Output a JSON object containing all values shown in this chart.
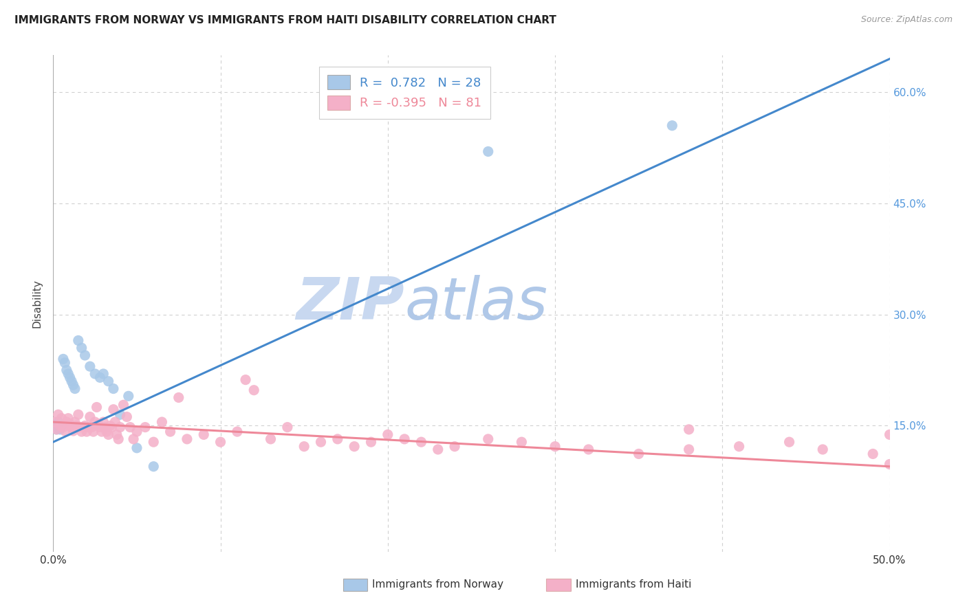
{
  "title": "IMMIGRANTS FROM NORWAY VS IMMIGRANTS FROM HAITI DISABILITY CORRELATION CHART",
  "source": "Source: ZipAtlas.com",
  "ylabel": "Disability",
  "xlim": [
    0.0,
    0.5
  ],
  "ylim": [
    -0.02,
    0.65
  ],
  "norway_color": "#a8c8e8",
  "haiti_color": "#f4b0c8",
  "norway_line_color": "#4488cc",
  "haiti_line_color": "#ee8899",
  "right_tick_color": "#5599dd",
  "R_norway": 0.782,
  "N_norway": 28,
  "R_haiti": -0.395,
  "N_haiti": 81,
  "norway_line_x0": 0.0,
  "norway_line_y0": 0.128,
  "norway_line_x1": 0.5,
  "norway_line_y1": 0.645,
  "haiti_line_x0": 0.0,
  "haiti_line_y0": 0.155,
  "haiti_line_x1": 0.5,
  "haiti_line_y1": 0.095,
  "norway_points_x": [
    0.001,
    0.002,
    0.003,
    0.004,
    0.005,
    0.006,
    0.007,
    0.008,
    0.009,
    0.01,
    0.011,
    0.012,
    0.013,
    0.015,
    0.017,
    0.019,
    0.022,
    0.025,
    0.028,
    0.03,
    0.033,
    0.036,
    0.04,
    0.045,
    0.05,
    0.06,
    0.26,
    0.37
  ],
  "norway_points_y": [
    0.15,
    0.145,
    0.155,
    0.145,
    0.15,
    0.24,
    0.235,
    0.225,
    0.22,
    0.215,
    0.21,
    0.205,
    0.2,
    0.265,
    0.255,
    0.245,
    0.23,
    0.22,
    0.215,
    0.22,
    0.21,
    0.2,
    0.165,
    0.19,
    0.12,
    0.095,
    0.52,
    0.555
  ],
  "haiti_points_x": [
    0.001,
    0.002,
    0.003,
    0.004,
    0.005,
    0.006,
    0.007,
    0.008,
    0.009,
    0.01,
    0.011,
    0.012,
    0.013,
    0.014,
    0.015,
    0.016,
    0.017,
    0.018,
    0.019,
    0.02,
    0.021,
    0.022,
    0.023,
    0.024,
    0.025,
    0.026,
    0.027,
    0.028,
    0.029,
    0.03,
    0.031,
    0.032,
    0.033,
    0.034,
    0.035,
    0.036,
    0.037,
    0.038,
    0.039,
    0.04,
    0.042,
    0.044,
    0.046,
    0.048,
    0.05,
    0.055,
    0.06,
    0.065,
    0.07,
    0.075,
    0.08,
    0.09,
    0.1,
    0.11,
    0.115,
    0.12,
    0.13,
    0.14,
    0.15,
    0.16,
    0.17,
    0.18,
    0.19,
    0.2,
    0.21,
    0.22,
    0.23,
    0.24,
    0.26,
    0.28,
    0.3,
    0.32,
    0.35,
    0.38,
    0.41,
    0.44,
    0.46,
    0.49,
    0.5,
    0.38,
    0.5
  ],
  "haiti_points_y": [
    0.155,
    0.145,
    0.165,
    0.15,
    0.16,
    0.148,
    0.143,
    0.155,
    0.16,
    0.152,
    0.148,
    0.143,
    0.155,
    0.15,
    0.165,
    0.148,
    0.142,
    0.148,
    0.15,
    0.142,
    0.148,
    0.162,
    0.148,
    0.142,
    0.155,
    0.175,
    0.152,
    0.148,
    0.142,
    0.155,
    0.148,
    0.142,
    0.138,
    0.15,
    0.148,
    0.172,
    0.155,
    0.138,
    0.132,
    0.148,
    0.178,
    0.162,
    0.148,
    0.132,
    0.142,
    0.148,
    0.128,
    0.155,
    0.142,
    0.188,
    0.132,
    0.138,
    0.128,
    0.142,
    0.212,
    0.198,
    0.132,
    0.148,
    0.122,
    0.128,
    0.132,
    0.122,
    0.128,
    0.138,
    0.132,
    0.128,
    0.118,
    0.122,
    0.132,
    0.128,
    0.122,
    0.118,
    0.112,
    0.118,
    0.122,
    0.128,
    0.118,
    0.112,
    0.098,
    0.145,
    0.138
  ],
  "watermark_zip": "ZIP",
  "watermark_atlas": "atlas",
  "watermark_zip_color": "#c8d8f0",
  "watermark_atlas_color": "#b0c8e8",
  "background_color": "#ffffff",
  "grid_color": "#d0d0d0"
}
